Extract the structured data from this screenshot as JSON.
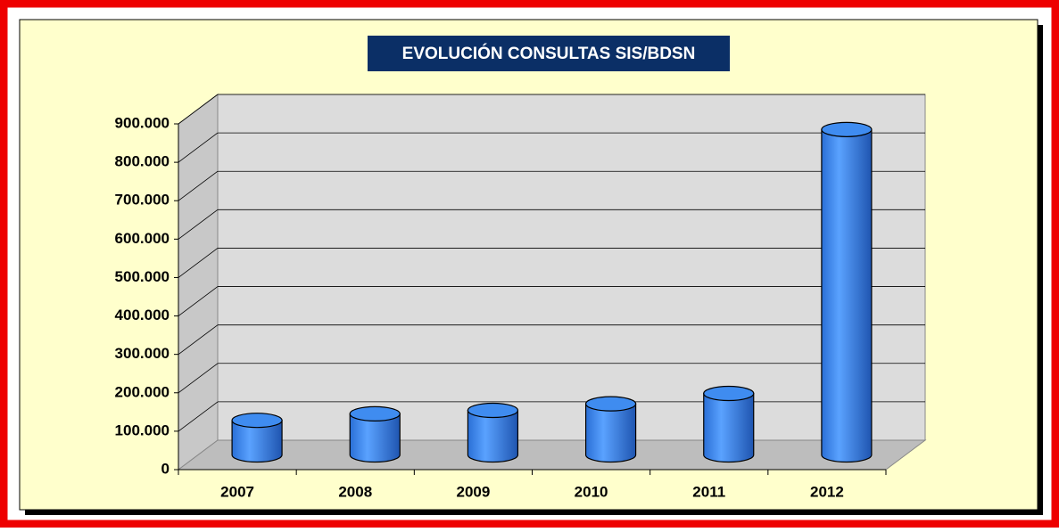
{
  "chart_data": {
    "type": "bar3d",
    "title": "EVOLUCIÓN CONSULTAS SIS/BDSN",
    "categories": [
      "2007",
      "2008",
      "2009",
      "2010",
      "2011",
      "2012"
    ],
    "values": [
      90000,
      107000,
      116000,
      133000,
      160000,
      847000
    ],
    "color": "#3f8cf0",
    "ylim": [
      0,
      900000
    ],
    "yticks": [
      0,
      {
        "value": 100000,
        "label": "100.000"
      },
      {
        "value": 200000,
        "label": "200.000"
      },
      {
        "value": 300000,
        "label": "300.000"
      },
      {
        "value": 400000,
        "label": "400.000"
      },
      {
        "value": 500000,
        "label": "500.000"
      },
      {
        "value": 600000,
        "label": "600.000"
      },
      {
        "value": 700000,
        "label": "700.000"
      },
      {
        "value": 800000,
        "label": "800.000"
      },
      {
        "value": 900000,
        "label": "900.000"
      }
    ],
    "grid": true
  }
}
